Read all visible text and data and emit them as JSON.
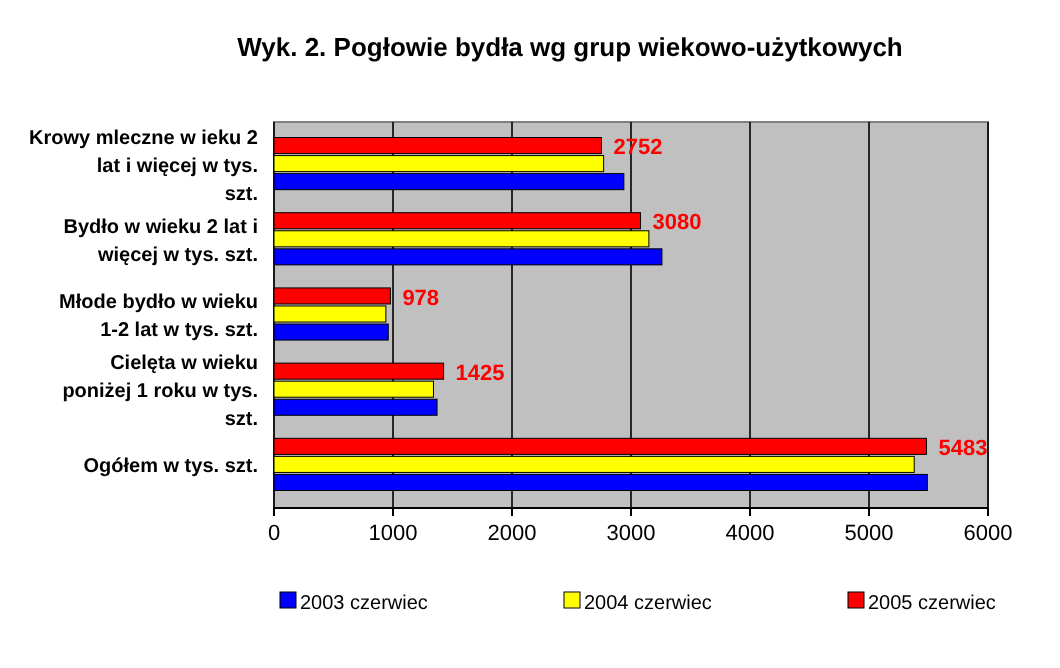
{
  "chart_data": {
    "type": "bar",
    "orientation": "horizontal",
    "title": "Wyk. 2. Pogłowie bydła wg grup wiekowo-użytkowych",
    "categories": [
      "Krowy mleczne w ieku 2 lat i więcej w tys. szt.",
      "Bydło w wieku 2 lat i więcej w tys. szt.",
      "Młode bydło w wieku 1-2 lat w tys. szt.",
      "Cielęta w wieku poniżej 1 roku w tys. szt.",
      "Ogółem w tys. szt."
    ],
    "series": [
      {
        "name": "2003 czerwiec",
        "color": "#0000ff",
        "values": [
          2940,
          3260,
          960,
          1370,
          5490
        ]
      },
      {
        "name": "2004 czerwiec",
        "color": "#ffff00",
        "values": [
          2770,
          3150,
          940,
          1340,
          5380
        ]
      },
      {
        "name": "2005 czerwiec",
        "color": "#ff0000",
        "values": [
          2752,
          3080,
          978,
          1425,
          5483
        ],
        "value_labels": [
          "2752",
          "3080",
          "978",
          "1425",
          "5483"
        ]
      }
    ],
    "xlim": [
      0,
      6000
    ],
    "xticks": [
      0,
      1000,
      2000,
      3000,
      4000,
      5000,
      6000
    ],
    "grid": "x",
    "legend": "bottom"
  }
}
